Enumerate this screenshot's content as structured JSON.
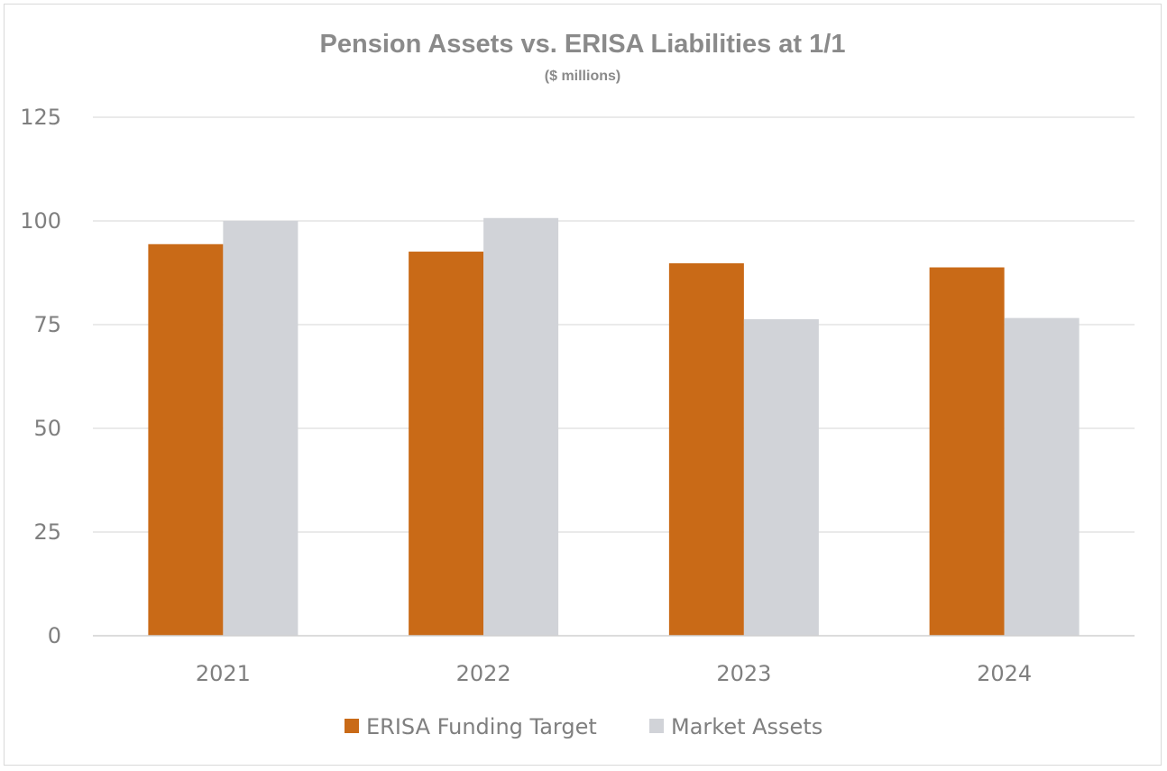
{
  "chart_data": {
    "type": "bar",
    "title": "Pension Assets vs. ERISA Liabilities at 1/1",
    "subtitle": "($ millions)",
    "categories": [
      "2021",
      "2022",
      "2023",
      "2024"
    ],
    "series": [
      {
        "name": "ERISA Funding Target",
        "color": "#c96a17",
        "values": [
          94.4,
          92.6,
          89.8,
          88.8
        ]
      },
      {
        "name": "Market Assets",
        "color": "#d1d3d8",
        "values": [
          100.0,
          100.7,
          76.3,
          76.6
        ]
      }
    ],
    "ylim": [
      0,
      125
    ],
    "yticks": [
      "0",
      "25",
      "50",
      "75",
      "100",
      "125"
    ],
    "ytick_values": [
      0,
      25,
      50,
      75,
      100,
      125
    ],
    "xlabel": "",
    "ylabel": "",
    "grid": true,
    "legend_position": "bottom"
  }
}
